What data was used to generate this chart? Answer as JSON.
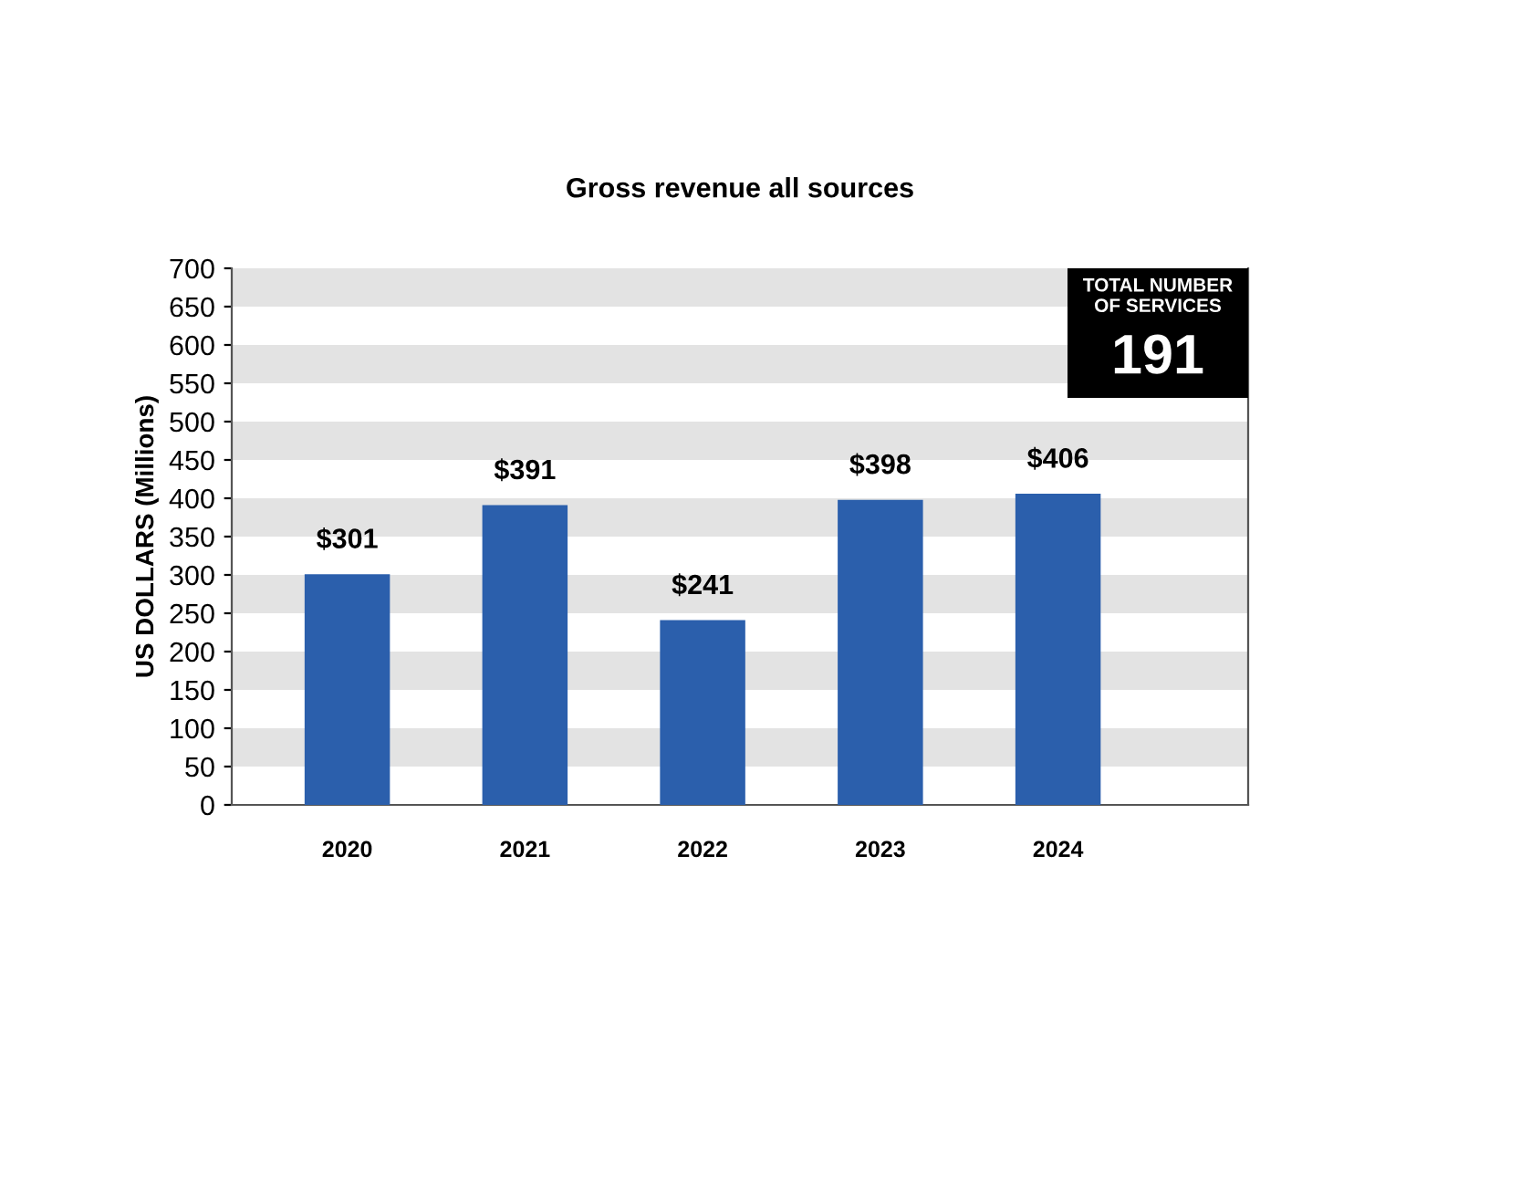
{
  "chart_data": {
    "type": "bar",
    "title": "Gross revenue all sources",
    "ylabel": "US DOLLARS (Millions)",
    "categories": [
      "2020",
      "2021",
      "2022",
      "2023",
      "2024"
    ],
    "values": [
      301,
      391,
      241,
      398,
      406
    ],
    "value_labels": [
      "$301",
      "$391",
      "$241",
      "$398",
      "$406"
    ],
    "color": "#2b5fac",
    "ylim": [
      0,
      700
    ],
    "yticks": [
      0,
      50,
      100,
      150,
      200,
      250,
      300,
      350,
      400,
      450,
      500,
      550,
      600,
      650,
      700
    ],
    "bands": [
      {
        "axis": "y",
        "from": 50,
        "to": 100,
        "color": "#e3e3e3"
      },
      {
        "axis": "y",
        "from": 150,
        "to": 200,
        "color": "#e3e3e3"
      },
      {
        "axis": "y",
        "from": 250,
        "to": 300,
        "color": "#e3e3e3"
      },
      {
        "axis": "y",
        "from": 350,
        "to": 400,
        "color": "#e3e3e3"
      },
      {
        "axis": "y",
        "from": 450,
        "to": 500,
        "color": "#e3e3e3"
      },
      {
        "axis": "y",
        "from": 550,
        "to": 600,
        "color": "#e3e3e3"
      },
      {
        "axis": "y",
        "from": 650,
        "to": 700,
        "color": "#e3e3e3"
      }
    ],
    "annotations": [
      "TOTAL NUMBER\nOF SERVICES",
      "191"
    ]
  }
}
